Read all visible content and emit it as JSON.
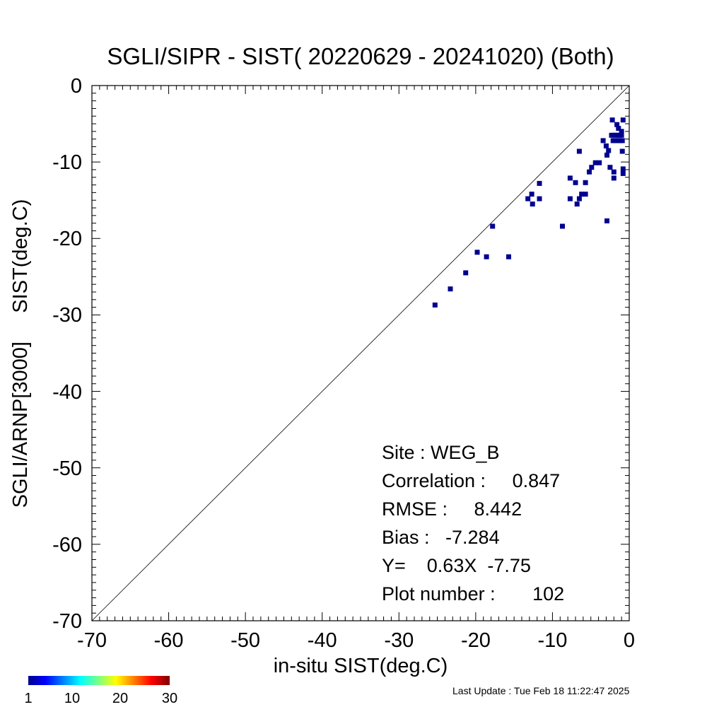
{
  "chart_data": {
    "type": "scatter",
    "title": "SGLI/SIPR - SIST( 20220629 - 20241020) (Both)",
    "xlabel": "in-situ SIST(deg.C)",
    "ylabel": "SGLI/ARNP[3000]     SIST(deg.C)",
    "xlim": [
      -70,
      0
    ],
    "ylim": [
      -70,
      0
    ],
    "xticks": [
      "-70",
      "-60",
      "-50",
      "-40",
      "-30",
      "-20",
      "-10",
      "0"
    ],
    "yticks": [
      "0",
      "-10",
      "-20",
      "-30",
      "-40",
      "-50",
      "-60",
      "-70"
    ],
    "grid": false,
    "reference_line": "1:1",
    "point_color": "#00008f",
    "points": [
      [
        -25.3,
        -28.7
      ],
      [
        -23.3,
        -26.6
      ],
      [
        -21.3,
        -24.5
      ],
      [
        -19.8,
        -21.8
      ],
      [
        -18.6,
        -22.4
      ],
      [
        -15.7,
        -22.4
      ],
      [
        -17.8,
        -18.4
      ],
      [
        -8.7,
        -18.4
      ],
      [
        -13.2,
        -14.8
      ],
      [
        -12.7,
        -14.2
      ],
      [
        -12.6,
        -15.5
      ],
      [
        -11.7,
        -12.8
      ],
      [
        -11.7,
        -14.8
      ],
      [
        -7.7,
        -12.1
      ],
      [
        -7.7,
        -14.8
      ],
      [
        -7.0,
        -12.7
      ],
      [
        -6.8,
        -15.5
      ],
      [
        -6.5,
        -14.8
      ],
      [
        -6.2,
        -14.2
      ],
      [
        -5.7,
        -14.2
      ],
      [
        -5.7,
        -12.7
      ],
      [
        -6.5,
        -8.6
      ],
      [
        -5.2,
        -11.3
      ],
      [
        -4.9,
        -10.7
      ],
      [
        -4.4,
        -10.1
      ],
      [
        -3.9,
        -10.1
      ],
      [
        -3.4,
        -7.2
      ],
      [
        -3.0,
        -7.9
      ],
      [
        -2.9,
        -9.1
      ],
      [
        -2.7,
        -8.5
      ],
      [
        -2.5,
        -10.7
      ],
      [
        -2.3,
        -6.5
      ],
      [
        -2.1,
        -7.2
      ],
      [
        -2.0,
        -11.3
      ],
      [
        -2.0,
        -12.1
      ],
      [
        -1.9,
        -6.5
      ],
      [
        -1.8,
        -7.2
      ],
      [
        -1.6,
        -6.5
      ],
      [
        -1.4,
        -7.2
      ],
      [
        -1.3,
        -6.5
      ],
      [
        -1.2,
        -7.2
      ],
      [
        -1.0,
        -6.5
      ],
      [
        -1.0,
        -6.0
      ],
      [
        -0.9,
        -7.2
      ],
      [
        -1.6,
        -5.1
      ],
      [
        -1.4,
        -5.6
      ],
      [
        -2.2,
        -4.5
      ],
      [
        -0.8,
        -4.5
      ],
      [
        -0.9,
        -8.6
      ],
      [
        -0.8,
        -10.9
      ],
      [
        -0.8,
        -11.5
      ],
      [
        -2.9,
        -17.7
      ]
    ],
    "stats": {
      "site": "Site : WEG_B",
      "correlation": "Correlation :     0.847",
      "rmse": "RMSE :     8.442",
      "bias": "Bias :   -7.284",
      "fit": "Y=    0.63X  -7.75",
      "plot_number": "Plot number :       102"
    },
    "colorbar": {
      "ticks": [
        "1",
        "10",
        "20",
        "30"
      ],
      "min": 1,
      "max": 30
    },
    "footer": "Last Update : Tue Feb 18 11:22:47 2025"
  }
}
